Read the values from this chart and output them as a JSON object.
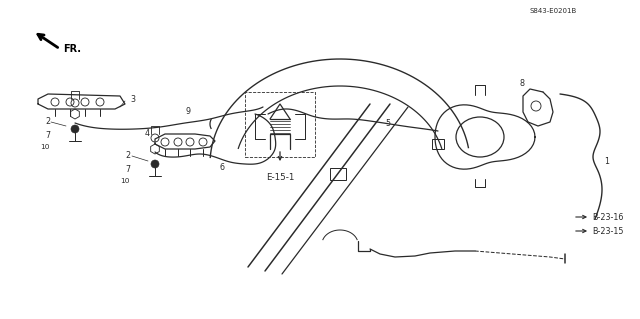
{
  "bg_color": "#ffffff",
  "line_color": "#2a2a2a",
  "fig_width": 6.4,
  "fig_height": 3.19,
  "dpi": 100,
  "label_fs": 5.8,
  "code_text": "S843-E0201B",
  "e151_text": "E-15-1",
  "b2315_text": "B-23-15",
  "b2316_text": "B-23-16",
  "fr_text": "FR."
}
